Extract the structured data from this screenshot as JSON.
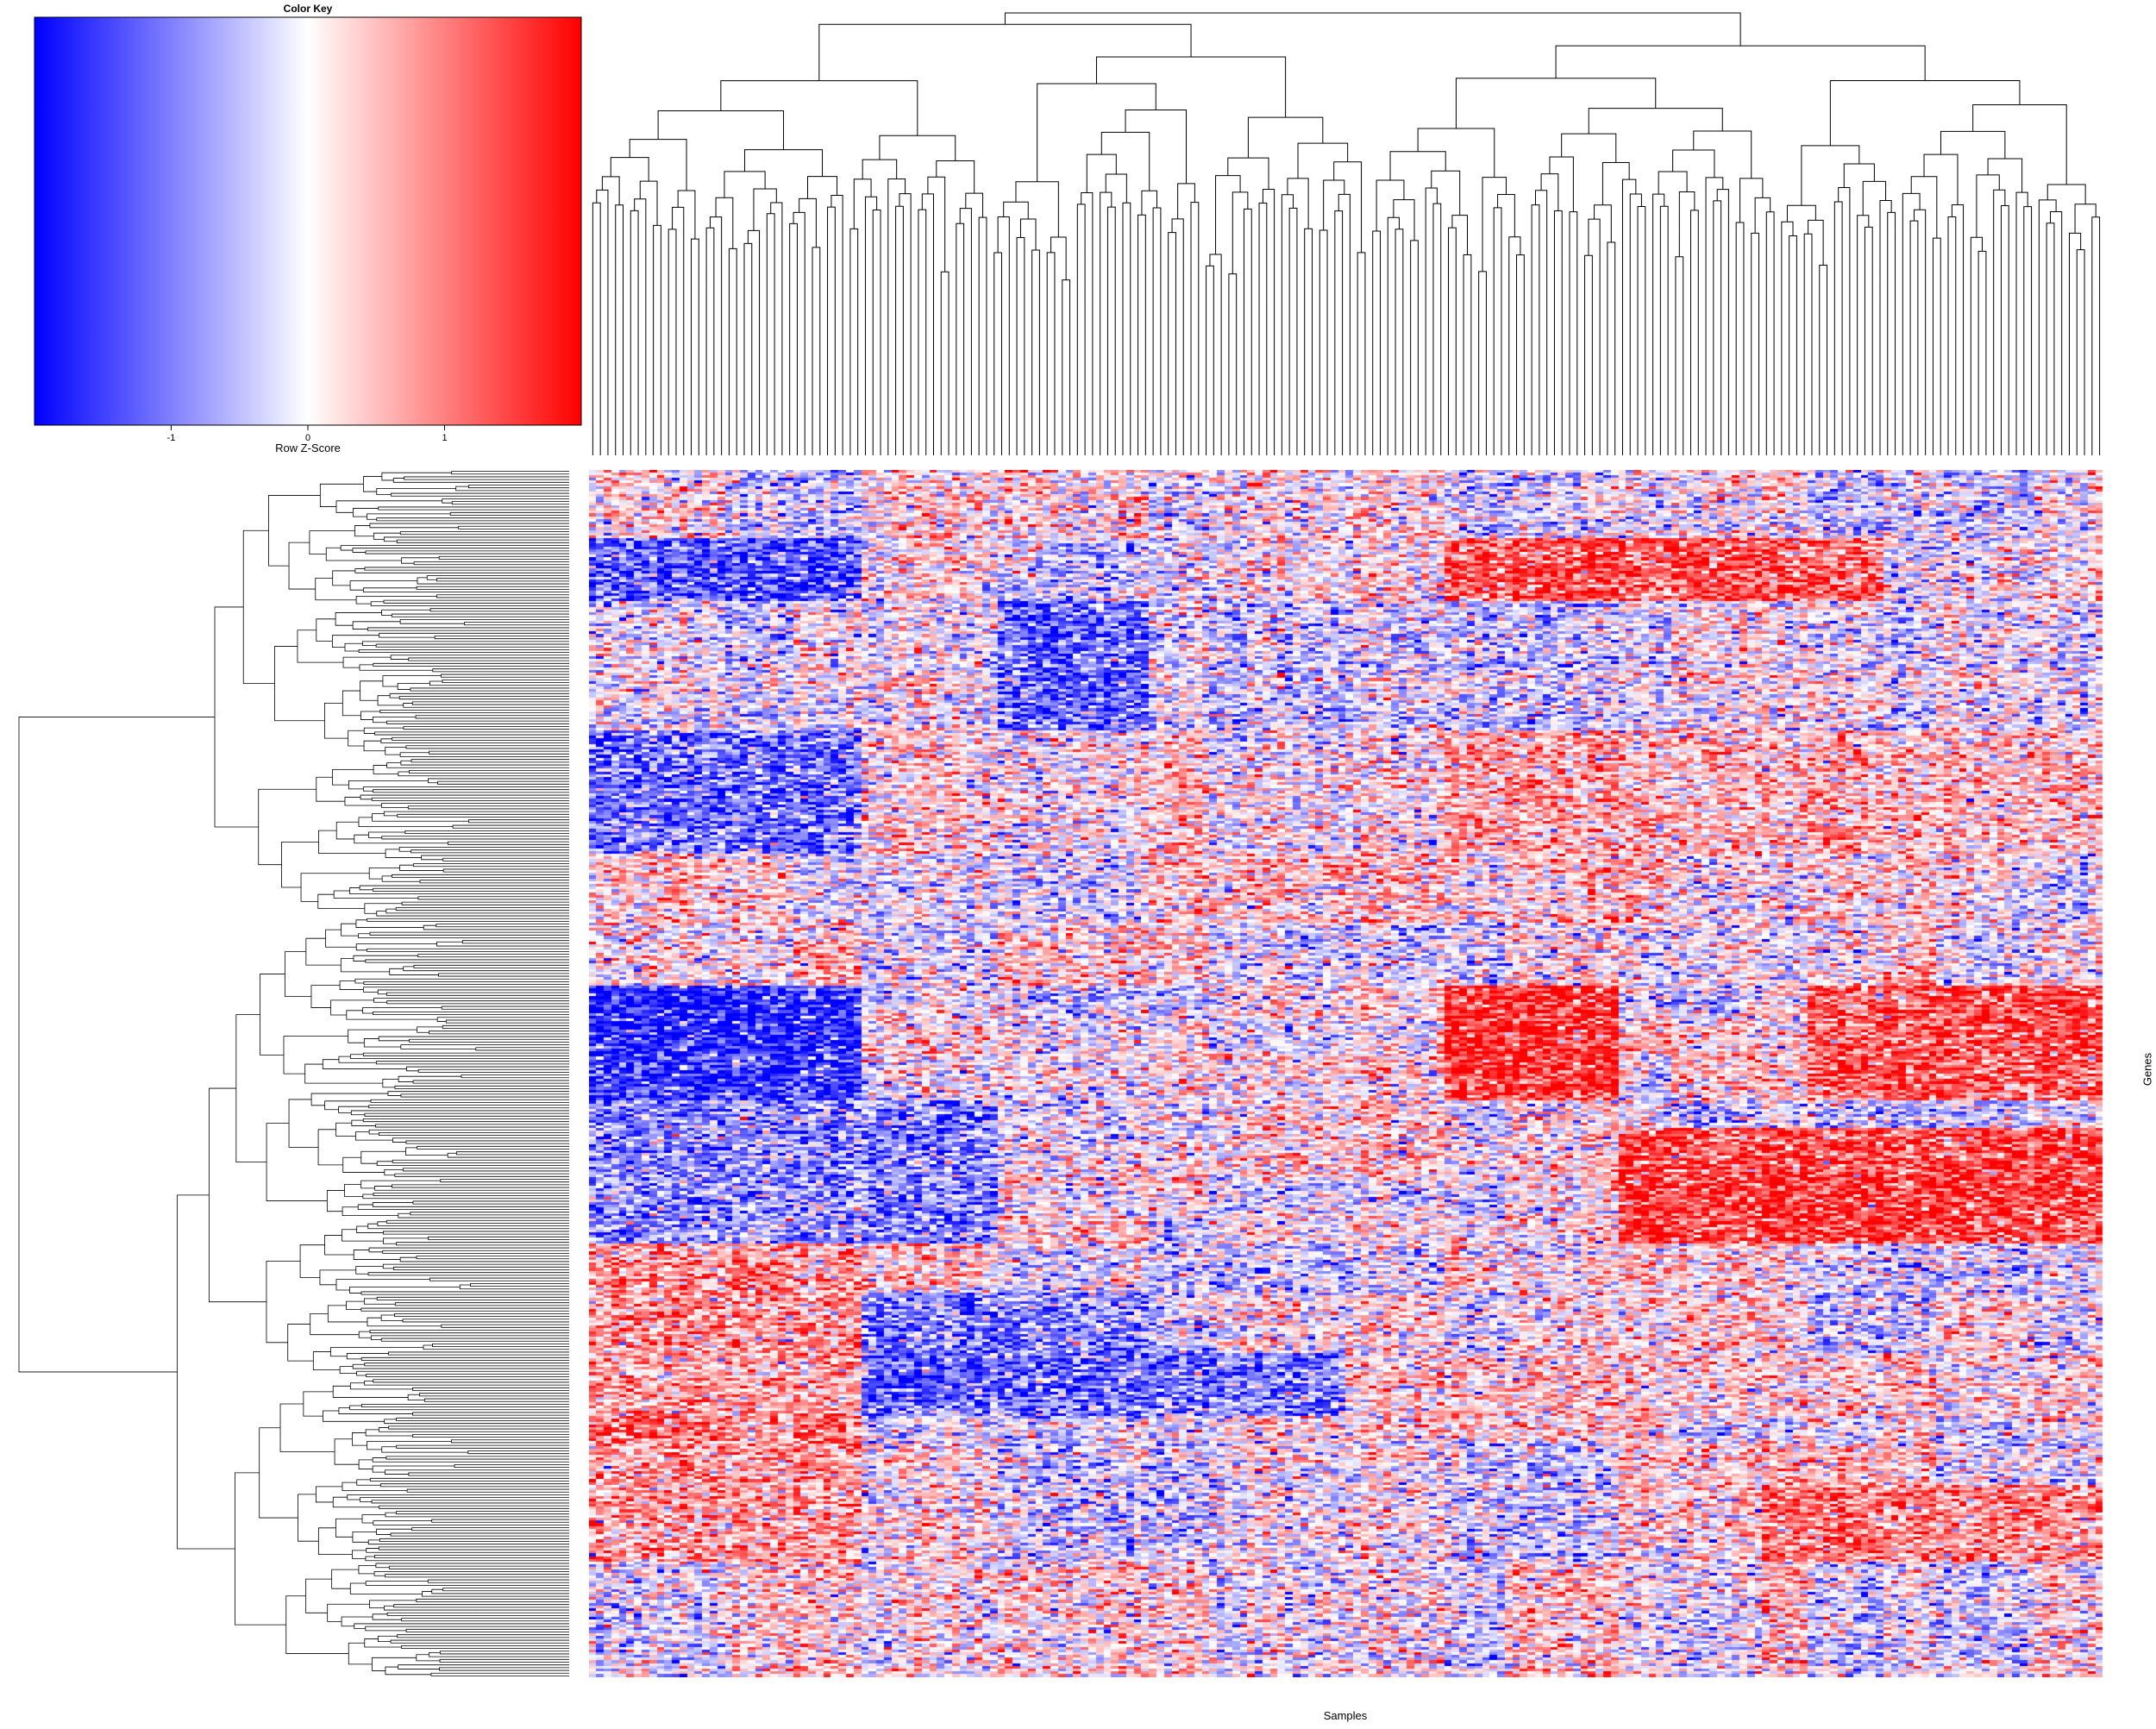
{
  "chart_data": {
    "type": "heatmap",
    "title": "",
    "xlabel": "Samples",
    "ylabel": "Genes",
    "n_columns": 200,
    "n_rows": 440,
    "row_dendrogram": true,
    "column_dendrogram": true,
    "color_key": {
      "title": "Color Key",
      "label": "Row Z-Score",
      "range": [
        -2,
        2
      ],
      "ticks": [
        {
          "value": -1,
          "label": "-1"
        },
        {
          "value": 0,
          "label": "0"
        },
        {
          "value": 1,
          "label": "1"
        }
      ],
      "colors": {
        "low": "#0000ff",
        "mid": "#ffffff",
        "high": "#ff0000"
      }
    },
    "column_cluster_boundaries": [
      18,
      27,
      36,
      54,
      74,
      82,
      113,
      121,
      136,
      143,
      155,
      161,
      171,
      178,
      191
    ],
    "row_cluster_boundaries": [
      25,
      48,
      95,
      140,
      165,
      188,
      200,
      213,
      230,
      258,
      272,
      282,
      300,
      322,
      355,
      398
    ],
    "blocks": [
      {
        "rows": [
          25,
          48
        ],
        "cols": [
          0,
          36
        ],
        "z": -1.3
      },
      {
        "rows": [
          25,
          48
        ],
        "cols": [
          113,
          171
        ],
        "z": 1.3
      },
      {
        "rows": [
          48,
          95
        ],
        "cols": [
          54,
          74
        ],
        "z": -1.2
      },
      {
        "rows": [
          95,
          140
        ],
        "cols": [
          0,
          36
        ],
        "z": -1.2
      },
      {
        "rows": [
          95,
          140
        ],
        "cols": [
          113,
          200
        ],
        "z": 0.5
      },
      {
        "rows": [
          188,
          230
        ],
        "cols": [
          0,
          36
        ],
        "z": -1.6
      },
      {
        "rows": [
          188,
          230
        ],
        "cols": [
          113,
          136
        ],
        "z": 1.6
      },
      {
        "rows": [
          188,
          230
        ],
        "cols": [
          161,
          200
        ],
        "z": 1.3
      },
      {
        "rows": [
          230,
          282
        ],
        "cols": [
          0,
          54
        ],
        "z": -0.9
      },
      {
        "rows": [
          240,
          282
        ],
        "cols": [
          136,
          200
        ],
        "z": 1.5
      },
      {
        "rows": [
          282,
          355
        ],
        "cols": [
          0,
          36
        ],
        "z": 0.9
      },
      {
        "rows": [
          300,
          340
        ],
        "cols": [
          36,
          74
        ],
        "z": -1.0
      },
      {
        "rows": [
          322,
          345
        ],
        "cols": [
          0,
          200
        ],
        "z": 0.3
      },
      {
        "rows": [
          322,
          345
        ],
        "cols": [
          36,
          100
        ],
        "z": -1.2
      },
      {
        "rows": [
          355,
          398
        ],
        "cols": [
          0,
          36
        ],
        "z": 0.8
      },
      {
        "rows": [
          370,
          398
        ],
        "cols": [
          155,
          200
        ],
        "z": 0.9
      }
    ]
  },
  "colors": {
    "background": "#ffffff",
    "dendrogram_line": "#000000",
    "key_low": "#0000ff",
    "key_mid": "#ffffff",
    "key_high": "#ff0000"
  }
}
